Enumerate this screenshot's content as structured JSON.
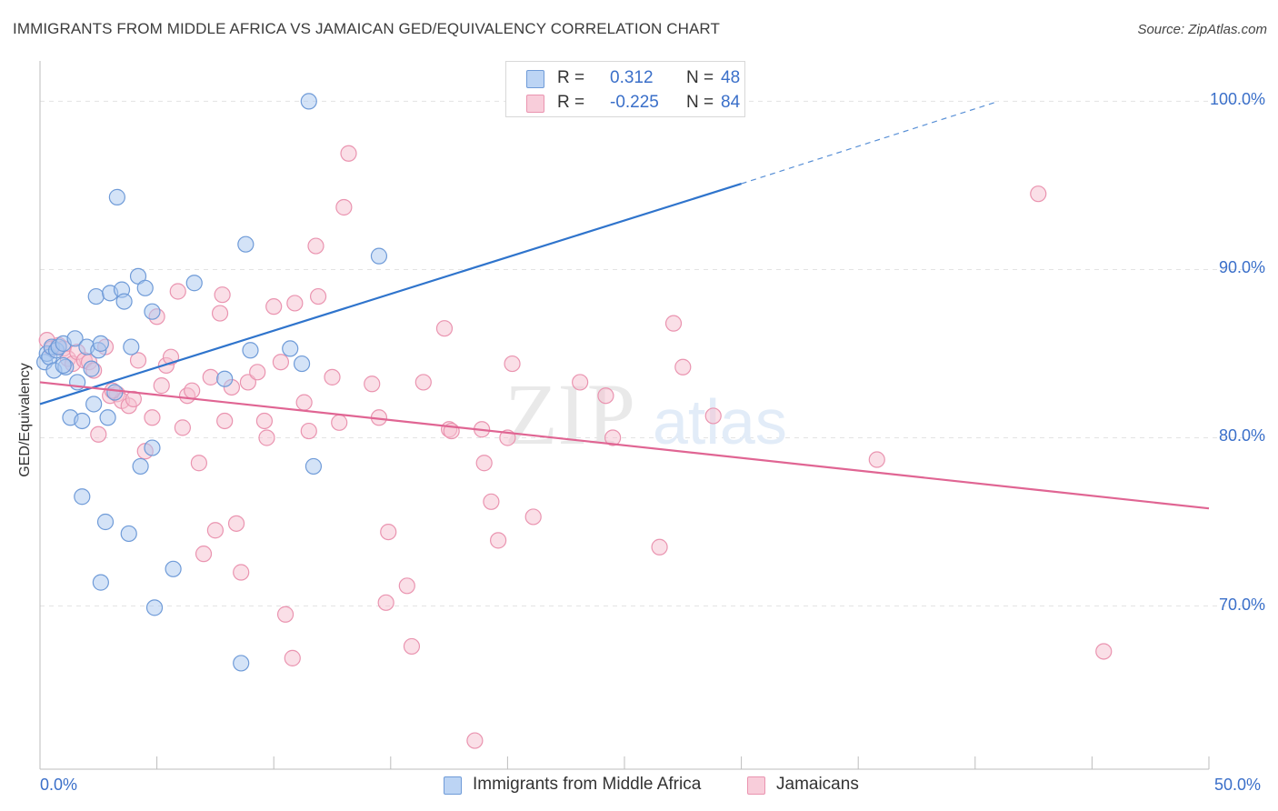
{
  "header": {
    "title": "IMMIGRANTS FROM MIDDLE AFRICA VS JAMAICAN GED/EQUIVALENCY CORRELATION CHART",
    "source": "Source: ZipAtlas.com"
  },
  "watermark": {
    "zip": "ZIP",
    "atlas": "atlas"
  },
  "legend": {
    "series1": {
      "r_label": "R =",
      "r_value": "0.312",
      "n_label": "N =",
      "n_value": "48"
    },
    "series2": {
      "r_label": "R =",
      "r_value": "-0.225",
      "n_label": "N =",
      "n_value": "84"
    }
  },
  "bottom_legend": {
    "series1": "Immigrants from Middle Africa",
    "series2": "Jamaicans"
  },
  "colors": {
    "blue_fill": "#aac8f0",
    "blue_stroke": "#6f9bd8",
    "blue_line": "#2f74cc",
    "pink_fill": "#f6bfd0",
    "pink_stroke": "#ea94b0",
    "pink_line": "#e06593",
    "tick_text": "#3a6fc9",
    "grid": "#e3e3e3"
  },
  "chart_data": {
    "type": "scatter",
    "title": "IMMIGRANTS FROM MIDDLE AFRICA VS JAMAICAN GED/EQUIVALENCY CORRELATION CHART",
    "xlabel": "",
    "ylabel": "GED/Equivalency",
    "xlim": [
      0,
      50
    ],
    "ylim": [
      60.3,
      102.4
    ],
    "x_tick_labels": [
      "0.0%",
      "50.0%"
    ],
    "y_ticks": [
      70,
      80,
      90,
      100
    ],
    "y_tick_labels": [
      "70.0%",
      "80.0%",
      "90.0%",
      "100.0%"
    ],
    "grid": true,
    "legend_position": "top-center",
    "series": [
      {
        "name": "Immigrants from Middle Africa",
        "color": "#aac8f0",
        "points": [
          [
            0.2,
            84.5
          ],
          [
            0.3,
            85.0
          ],
          [
            0.4,
            84.8
          ],
          [
            0.5,
            85.4
          ],
          [
            0.6,
            84.0
          ],
          [
            0.7,
            85.2
          ],
          [
            0.8,
            85.4
          ],
          [
            1.0,
            85.6
          ],
          [
            1.1,
            84.2
          ],
          [
            1.3,
            81.2
          ],
          [
            1.5,
            85.9
          ],
          [
            1.6,
            83.3
          ],
          [
            1.8,
            81.0
          ],
          [
            2.0,
            85.4
          ],
          [
            2.2,
            84.1
          ],
          [
            2.3,
            82.0
          ],
          [
            2.4,
            88.4
          ],
          [
            2.5,
            85.2
          ],
          [
            2.6,
            85.6
          ],
          [
            2.8,
            75.0
          ],
          [
            2.9,
            81.2
          ],
          [
            3.0,
            88.6
          ],
          [
            3.2,
            82.7
          ],
          [
            3.3,
            94.3
          ],
          [
            3.5,
            88.8
          ],
          [
            3.6,
            88.1
          ],
          [
            3.8,
            74.3
          ],
          [
            3.9,
            85.4
          ],
          [
            4.2,
            89.6
          ],
          [
            4.3,
            78.3
          ],
          [
            4.5,
            88.9
          ],
          [
            4.8,
            87.5
          ],
          [
            4.8,
            79.4
          ],
          [
            4.9,
            69.9
          ],
          [
            5.7,
            72.2
          ],
          [
            6.6,
            89.2
          ],
          [
            7.9,
            83.5
          ],
          [
            8.6,
            66.6
          ],
          [
            8.8,
            91.5
          ],
          [
            9.0,
            85.2
          ],
          [
            10.7,
            85.3
          ],
          [
            11.2,
            84.4
          ],
          [
            11.5,
            100.0
          ],
          [
            11.7,
            78.3
          ],
          [
            14.5,
            90.8
          ],
          [
            1.8,
            76.5
          ],
          [
            2.6,
            71.4
          ],
          [
            1.0,
            84.3
          ]
        ],
        "trend": {
          "x": [
            0,
            30
          ],
          "y": [
            82.0,
            95.1
          ]
        },
        "trend_extension": {
          "x": [
            30,
            41
          ],
          "y": [
            95.1,
            100.0
          ]
        }
      },
      {
        "name": "Jamaicans",
        "color": "#f6bfd0",
        "points": [
          [
            0.3,
            85.8
          ],
          [
            0.5,
            85.3
          ],
          [
            0.8,
            85.5
          ],
          [
            1.0,
            85.3
          ],
          [
            1.2,
            84.7
          ],
          [
            1.4,
            84.4
          ],
          [
            1.6,
            85.1
          ],
          [
            1.9,
            84.6
          ],
          [
            2.1,
            84.5
          ],
          [
            2.3,
            84.0
          ],
          [
            2.5,
            80.2
          ],
          [
            2.8,
            85.4
          ],
          [
            3.0,
            82.5
          ],
          [
            3.3,
            82.6
          ],
          [
            3.5,
            82.2
          ],
          [
            3.8,
            81.9
          ],
          [
            4.0,
            82.3
          ],
          [
            4.2,
            84.6
          ],
          [
            4.5,
            79.2
          ],
          [
            4.8,
            81.2
          ],
          [
            5.0,
            87.2
          ],
          [
            5.2,
            83.1
          ],
          [
            5.4,
            84.3
          ],
          [
            5.6,
            84.8
          ],
          [
            5.9,
            88.7
          ],
          [
            6.1,
            80.6
          ],
          [
            6.3,
            82.5
          ],
          [
            6.5,
            82.8
          ],
          [
            6.8,
            78.5
          ],
          [
            7.0,
            73.1
          ],
          [
            7.3,
            83.6
          ],
          [
            7.5,
            74.5
          ],
          [
            7.7,
            87.4
          ],
          [
            7.8,
            88.5
          ],
          [
            7.9,
            81.0
          ],
          [
            8.2,
            83.0
          ],
          [
            8.4,
            74.9
          ],
          [
            8.6,
            72.0
          ],
          [
            8.9,
            83.3
          ],
          [
            9.3,
            83.9
          ],
          [
            9.6,
            81.0
          ],
          [
            9.7,
            80.0
          ],
          [
            10.0,
            87.8
          ],
          [
            10.3,
            84.5
          ],
          [
            10.5,
            69.5
          ],
          [
            10.8,
            66.9
          ],
          [
            10.9,
            88.0
          ],
          [
            11.3,
            82.1
          ],
          [
            11.5,
            80.4
          ],
          [
            11.8,
            91.4
          ],
          [
            11.9,
            88.4
          ],
          [
            12.5,
            83.6
          ],
          [
            12.8,
            80.9
          ],
          [
            13.2,
            96.9
          ],
          [
            13.0,
            93.7
          ],
          [
            14.2,
            83.2
          ],
          [
            14.5,
            81.2
          ],
          [
            14.8,
            70.2
          ],
          [
            14.9,
            74.4
          ],
          [
            15.7,
            71.2
          ],
          [
            15.9,
            67.6
          ],
          [
            16.4,
            83.3
          ],
          [
            17.3,
            86.5
          ],
          [
            17.5,
            80.5
          ],
          [
            17.6,
            80.4
          ],
          [
            18.6,
            62.0
          ],
          [
            18.9,
            80.5
          ],
          [
            19.0,
            78.5
          ],
          [
            19.3,
            76.2
          ],
          [
            19.6,
            73.9
          ],
          [
            20.0,
            80.0
          ],
          [
            20.2,
            84.4
          ],
          [
            21.1,
            75.3
          ],
          [
            23.1,
            83.3
          ],
          [
            24.2,
            82.5
          ],
          [
            24.5,
            80.0
          ],
          [
            26.5,
            73.5
          ],
          [
            27.1,
            86.8
          ],
          [
            27.5,
            84.2
          ],
          [
            28.8,
            81.3
          ],
          [
            35.8,
            78.7
          ],
          [
            42.7,
            94.5
          ],
          [
            45.5,
            67.3
          ],
          [
            3.1,
            82.8
          ]
        ],
        "trend": {
          "x": [
            0,
            50
          ],
          "y": [
            83.3,
            75.8
          ]
        }
      }
    ]
  }
}
